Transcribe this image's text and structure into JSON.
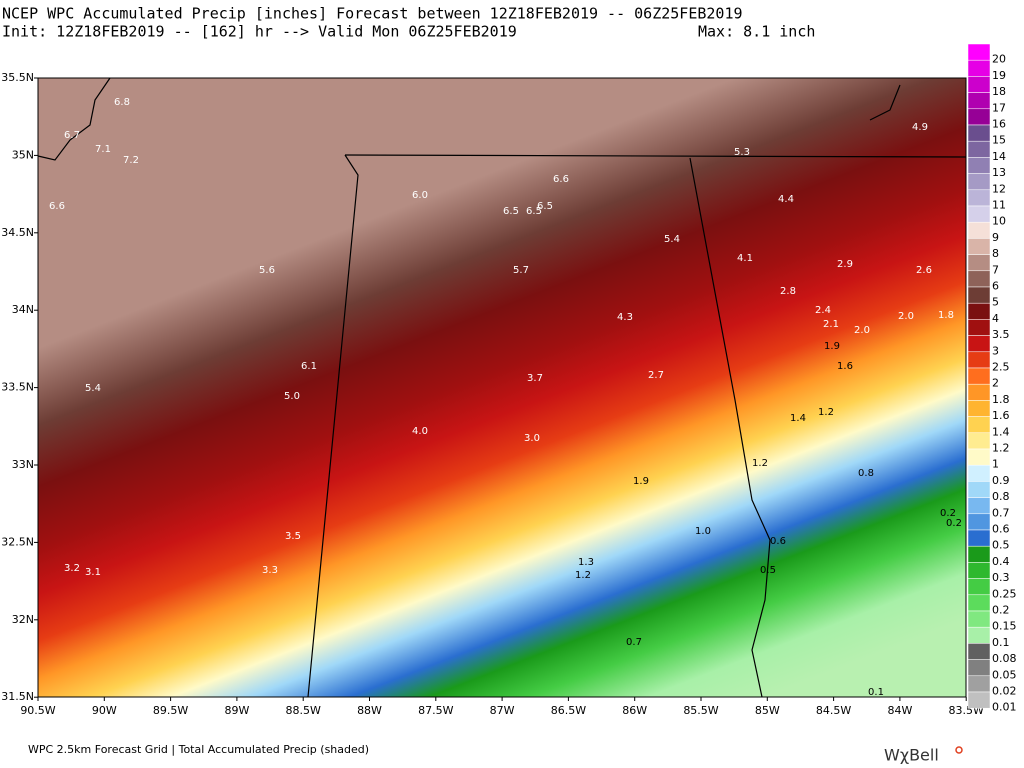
{
  "header": {
    "line1": "NCEP WPC Accumulated Precip [inches] Forecast between 12Z18FEB2019 -- 06Z25FEB2019",
    "line2": "Init: 12Z18FEB2019 -- [162] hr --> Valid Mon 06Z25FEB2019",
    "max": "Max: 8.1 inch"
  },
  "lat_labels": [
    "35.5N",
    "35N",
    "34.5N",
    "34N",
    "33.5N",
    "33N",
    "32.5N",
    "32N",
    "31.5N"
  ],
  "lon_labels": [
    "90.5W",
    "90W",
    "89.5W",
    "89W",
    "88.5W",
    "88W",
    "87.5W",
    "87W",
    "86.5W",
    "86W",
    "85.5W",
    "85W",
    "84.5W",
    "84W",
    "83.5W"
  ],
  "map_labels": [
    "6.8",
    "6.7",
    "7.1",
    "7.2",
    "6.6",
    "5.6",
    "5.4",
    "5.0",
    "6.1",
    "6.0",
    "6.6",
    "6.5",
    "6.5",
    "6.5",
    "5.7",
    "5.4",
    "5.3",
    "4.9",
    "4.4",
    "4.1",
    "2.9",
    "2.6",
    "2.8",
    "2.4",
    "2.1",
    "2.0",
    "2.0",
    "1.8",
    "1.9",
    "1.6",
    "4.3",
    "3.7",
    "2.7",
    "4.0",
    "3.0",
    "1.4",
    "1.2",
    "1.2",
    "0.8",
    "1.9",
    "1.0",
    "0.6",
    "0.5",
    "1.3",
    "1.2",
    "3.5",
    "3.3",
    "3.2",
    "3.1",
    "0.7",
    "0.2",
    "0.2",
    "0.1"
  ],
  "legend": [
    {
      "label": "20",
      "color": "#ff00ff"
    },
    {
      "label": "19",
      "color": "#e600e6"
    },
    {
      "label": "18",
      "color": "#cc00cc"
    },
    {
      "label": "17",
      "color": "#b000b0"
    },
    {
      "label": "16",
      "color": "#960096"
    },
    {
      "label": "15",
      "color": "#6a4e8e"
    },
    {
      "label": "14",
      "color": "#7d66a0"
    },
    {
      "label": "13",
      "color": "#9080b3"
    },
    {
      "label": "12",
      "color": "#a59ac5"
    },
    {
      "label": "11",
      "color": "#bbb4d8"
    },
    {
      "label": "10",
      "color": "#d5d0ea"
    },
    {
      "label": "9",
      "color": "#f5e0d8"
    },
    {
      "label": "8",
      "color": "#d9b4a8"
    },
    {
      "label": "7",
      "color": "#b58d83"
    },
    {
      "label": "6",
      "color": "#8e6259"
    },
    {
      "label": "5",
      "color": "#6d3d35"
    },
    {
      "label": "4",
      "color": "#7a1010"
    },
    {
      "label": "3.5",
      "color": "#a01010"
    },
    {
      "label": "3",
      "color": "#c81414"
    },
    {
      "label": "2.5",
      "color": "#e63c14"
    },
    {
      "label": "2",
      "color": "#ff6e1e"
    },
    {
      "label": "1.8",
      "color": "#ff9626"
    },
    {
      "label": "1.6",
      "color": "#ffb430"
    },
    {
      "label": "1.4",
      "color": "#ffd250"
    },
    {
      "label": "1.2",
      "color": "#ffec90"
    },
    {
      "label": "1",
      "color": "#fffac8"
    },
    {
      "label": "0.9",
      "color": "#d0f0ff"
    },
    {
      "label": "0.8",
      "color": "#a0d8f8"
    },
    {
      "label": "0.7",
      "color": "#78b8f0"
    },
    {
      "label": "0.6",
      "color": "#5096e0"
    },
    {
      "label": "0.5",
      "color": "#2a6ed0"
    },
    {
      "label": "0.4",
      "color": "#1a9a1a"
    },
    {
      "label": "0.3",
      "color": "#2eb82e"
    },
    {
      "label": "0.25",
      "color": "#44cc44"
    },
    {
      "label": "0.2",
      "color": "#5cdc5c"
    },
    {
      "label": "0.15",
      "color": "#80e880"
    },
    {
      "label": "0.1",
      "color": "#a8f0a8"
    },
    {
      "label": "0.08",
      "color": "#606060"
    },
    {
      "label": "0.05",
      "color": "#808080"
    },
    {
      "label": "0.02",
      "color": "#a0a0a0"
    },
    {
      "label": "0.01",
      "color": "#c0c0c0"
    }
  ],
  "footer": {
    "text": "WPC 2.5km Forecast Grid | Total Accumulated Precip (shaded)",
    "logo": "WχBell"
  }
}
